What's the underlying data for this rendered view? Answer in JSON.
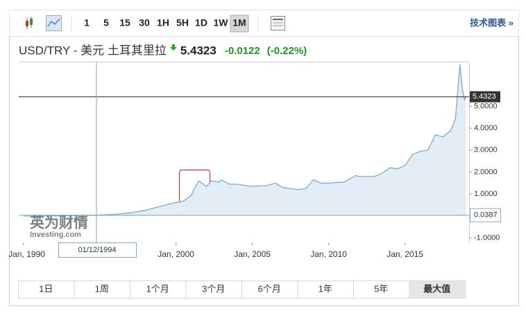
{
  "toolbar": {
    "intervals": [
      "1",
      "5",
      "15",
      "30",
      "1H",
      "5H",
      "1D",
      "1W",
      "1M"
    ],
    "active": "1M",
    "link": "技术图表 »"
  },
  "header": {
    "symbol": "USD/TRY - 美元 土耳其里拉",
    "price": "5.4323",
    "change": "-0.0122",
    "change_pct": "(-0.22%)"
  },
  "chart_data": {
    "type": "area",
    "color": "#7ea9cc",
    "fill": "#e3edf6",
    "x": [
      1990,
      1991,
      1992,
      1993,
      1994,
      1995,
      1996,
      1997,
      1998,
      1999,
      2000,
      2000.5,
      2001,
      2001.2,
      2001.5,
      2001.8,
      2002,
      2002.3,
      2002.8,
      2003,
      2003.5,
      2004,
      2004.5,
      2005,
      2006,
      2006.5,
      2007,
      2008,
      2008.5,
      2009,
      2009.5,
      2010,
      2011,
      2011.8,
      2012,
      2013,
      2013.5,
      2014,
      2014.5,
      2015,
      2015.5,
      2016,
      2016.5,
      2017,
      2017.5,
      2018,
      2018.3,
      2018.6,
      2018.75,
      2018.9,
      2019
    ],
    "values": [
      0.003,
      0.004,
      0.007,
      0.011,
      0.03,
      0.05,
      0.08,
      0.15,
      0.26,
      0.45,
      0.62,
      0.68,
      0.95,
      1.25,
      1.6,
      1.45,
      1.35,
      1.6,
      1.55,
      1.65,
      1.45,
      1.45,
      1.4,
      1.35,
      1.4,
      1.5,
      1.3,
      1.2,
      1.25,
      1.65,
      1.5,
      1.5,
      1.55,
      1.85,
      1.8,
      1.8,
      1.95,
      2.2,
      2.15,
      2.3,
      2.8,
      2.95,
      3.0,
      3.7,
      3.6,
      3.9,
      4.4,
      6.9,
      5.8,
      5.3,
      5.43
    ],
    "xlim": [
      1989.7,
      2019.2
    ],
    "ylim": [
      -1.2,
      7.0
    ],
    "xticks": [
      {
        "value": 1990,
        "label": "Jan, 1990"
      },
      {
        "value": 2000,
        "label": "Jan, 2000"
      },
      {
        "value": 2005,
        "label": "Jan, 2005"
      },
      {
        "value": 2010,
        "label": "Jan, 2010"
      },
      {
        "value": 2015,
        "label": "Jan, 2015"
      }
    ],
    "yticks": [
      {
        "value": -1,
        "label": "-1.0000"
      },
      {
        "value": 1,
        "label": "1.0000"
      },
      {
        "value": 2,
        "label": "2.0000"
      },
      {
        "value": 3,
        "label": "3.0000"
      },
      {
        "value": 4,
        "label": "4.0000"
      },
      {
        "value": 5,
        "label": "5.0000"
      }
    ],
    "current": {
      "value": 5.4323,
      "label": "5.4323"
    },
    "crosshair": {
      "date_label": "01/12/1994",
      "value": 0.0387,
      "label": "0.0387"
    },
    "watermark": {
      "brand": "英为财情",
      "site": "Investing.com"
    }
  },
  "ranges": {
    "labels": [
      "1日",
      "1周",
      "1个月",
      "3个月",
      "6个月",
      "1年",
      "5年",
      "最大值"
    ],
    "active": "最大值"
  }
}
